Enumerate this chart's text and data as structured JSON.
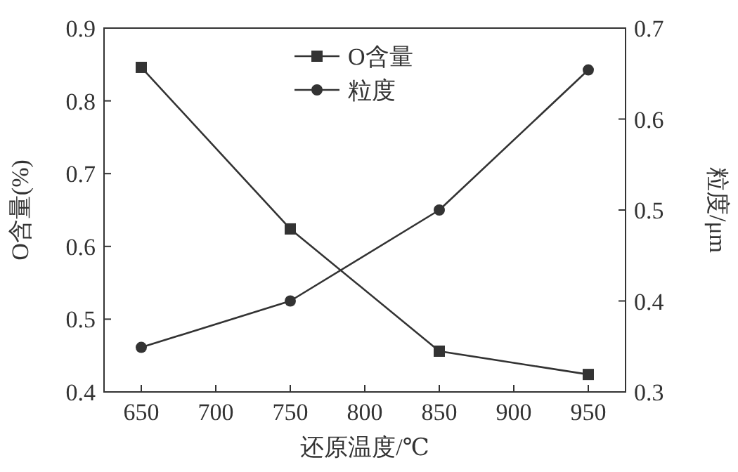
{
  "chart_data": {
    "type": "line",
    "xlabel": "还原温度/℃",
    "ylabel": "O含量(%)",
    "y2label": "粒度/μm",
    "x": [
      650,
      750,
      850,
      950
    ],
    "series": [
      {
        "name": "O含量",
        "color": "#333333",
        "values": [
          0.846,
          0.624,
          0.456,
          0.424
        ],
        "marker": "square"
      },
      {
        "name": "粒度",
        "color": "#333333",
        "values": [
          0.349,
          0.4,
          0.5,
          0.654
        ],
        "marker": "circle",
        "axis": "y2"
      }
    ],
    "xlim": [
      625,
      975
    ],
    "xticks": [
      650,
      700,
      750,
      800,
      850,
      900,
      950
    ],
    "ylim": [
      0.4,
      0.9
    ],
    "yticks": [
      {
        "value": 0.4,
        "label": "0.4"
      },
      {
        "value": 0.5,
        "label": "0.5"
      },
      {
        "value": 0.6,
        "label": "0.6"
      },
      {
        "value": 0.7,
        "label": "0.7"
      },
      {
        "value": 0.8,
        "label": "0.8"
      },
      {
        "value": 0.9,
        "label": "0.9"
      }
    ],
    "y2lim": [
      0.3,
      0.7
    ],
    "y2ticks": [
      {
        "value": 0.3,
        "label": "0.3"
      },
      {
        "value": 0.4,
        "label": "0.4"
      },
      {
        "value": 0.5,
        "label": "0.5"
      },
      {
        "value": 0.6,
        "label": "0.6"
      },
      {
        "value": 0.7,
        "label": "0.7"
      }
    ],
    "grid": false,
    "legend": "top",
    "line_style": "solid"
  }
}
